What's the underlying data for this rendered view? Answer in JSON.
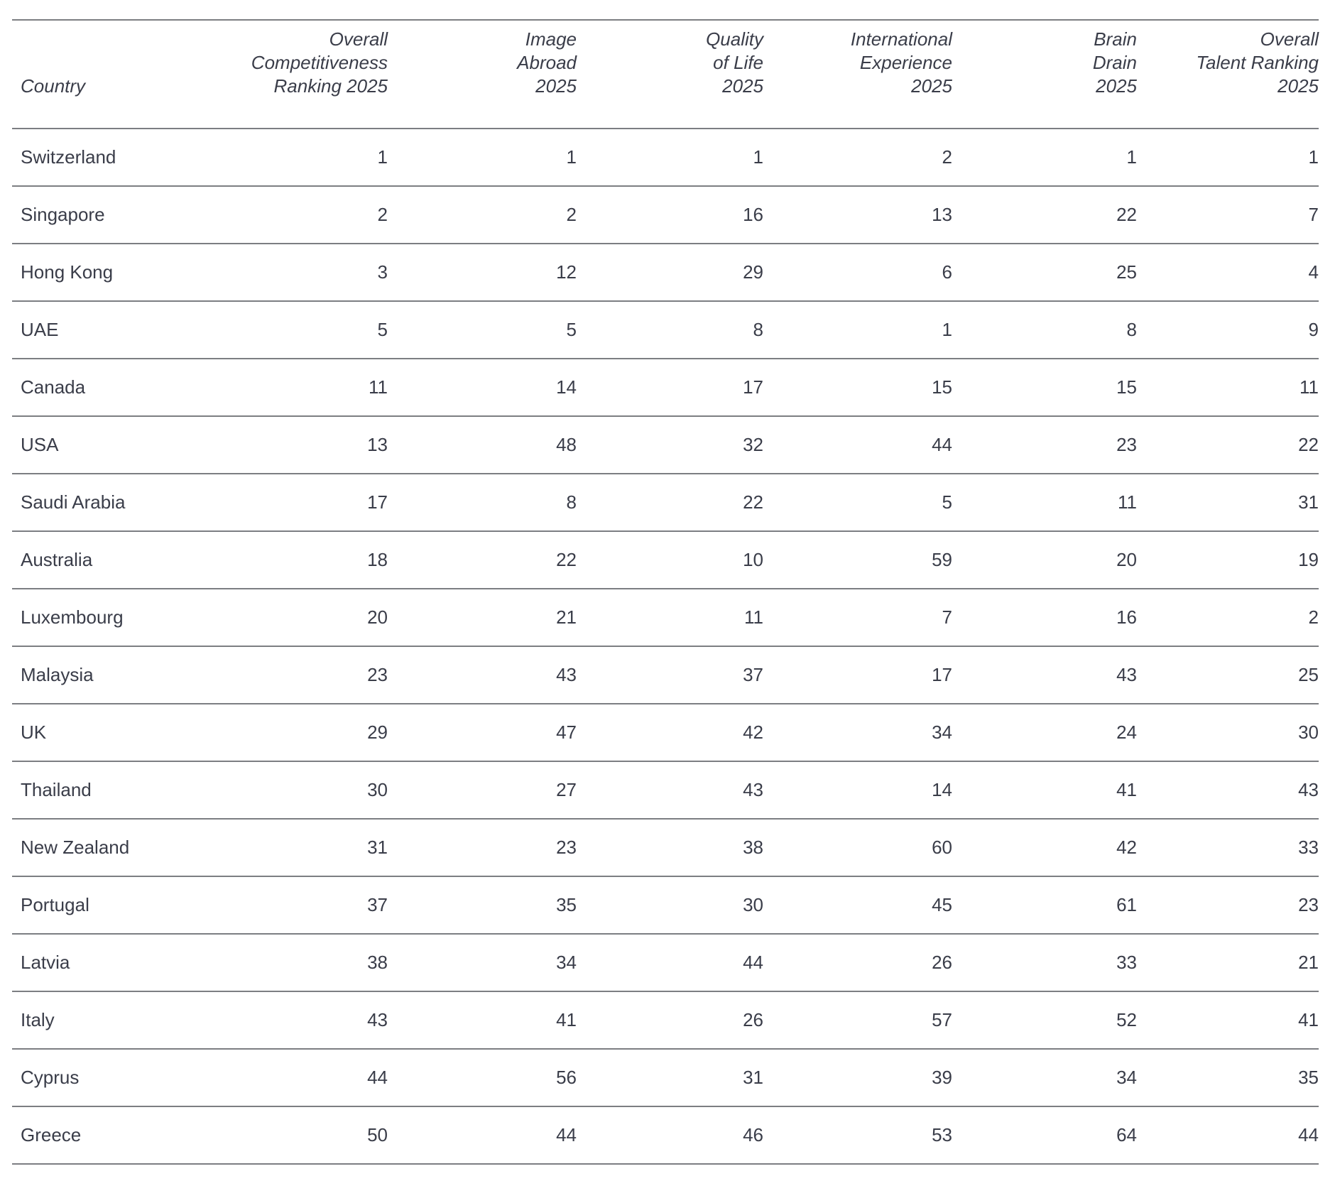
{
  "colors": {
    "text": "#3a3d49",
    "rule": "#7c7e82"
  },
  "chart_data": {
    "type": "table",
    "columns": [
      {
        "key": "country",
        "label": "Country"
      },
      {
        "key": "overall_competitiveness_ranking_2025",
        "label": "Overall\nCompetitiveness\nRanking 2025"
      },
      {
        "key": "image_abroad_2025",
        "label": "Image\nAbroad\n2025"
      },
      {
        "key": "quality_of_life_2025",
        "label": "Quality\nof Life\n2025"
      },
      {
        "key": "international_experience_2025",
        "label": "International\nExperience\n2025"
      },
      {
        "key": "brain_drain_2025",
        "label": "Brain\nDrain\n2025"
      },
      {
        "key": "overall_talent_ranking_2025",
        "label": "Overall\nTalent Ranking\n2025"
      }
    ],
    "rows": [
      [
        "Switzerland",
        1,
        1,
        1,
        2,
        1,
        1
      ],
      [
        "Singapore",
        2,
        2,
        16,
        13,
        22,
        7
      ],
      [
        "Hong Kong",
        3,
        12,
        29,
        6,
        25,
        4
      ],
      [
        "UAE",
        5,
        5,
        8,
        1,
        8,
        9
      ],
      [
        "Canada",
        11,
        14,
        17,
        15,
        15,
        11
      ],
      [
        "USA",
        13,
        48,
        32,
        44,
        23,
        22
      ],
      [
        "Saudi Arabia",
        17,
        8,
        22,
        5,
        11,
        31
      ],
      [
        "Australia",
        18,
        22,
        10,
        59,
        20,
        19
      ],
      [
        "Luxembourg",
        20,
        21,
        11,
        7,
        16,
        2
      ],
      [
        "Malaysia",
        23,
        43,
        37,
        17,
        43,
        25
      ],
      [
        "UK",
        29,
        47,
        42,
        34,
        24,
        30
      ],
      [
        "Thailand",
        30,
        27,
        43,
        14,
        41,
        43
      ],
      [
        "New Zealand",
        31,
        23,
        38,
        60,
        42,
        33
      ],
      [
        "Portugal",
        37,
        35,
        30,
        45,
        61,
        23
      ],
      [
        "Latvia",
        38,
        34,
        44,
        26,
        33,
        21
      ],
      [
        "Italy",
        43,
        41,
        26,
        57,
        52,
        41
      ],
      [
        "Cyprus",
        44,
        56,
        31,
        39,
        34,
        35
      ],
      [
        "Greece",
        50,
        44,
        46,
        53,
        64,
        44
      ]
    ]
  }
}
